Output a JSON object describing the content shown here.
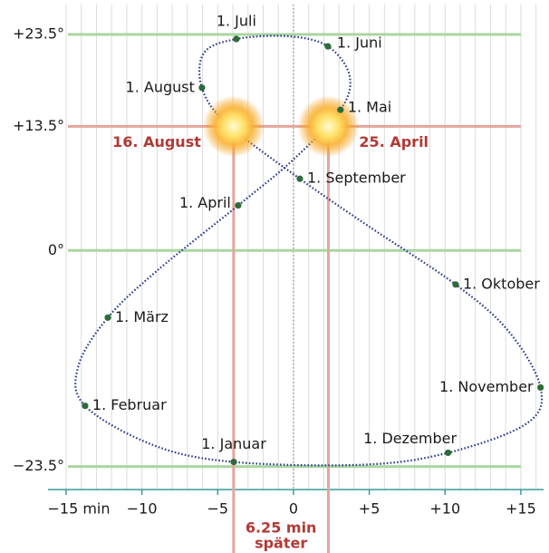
{
  "chart_data": {
    "type": "line",
    "xlim": [
      -15,
      16.5
    ],
    "ylim": [
      -26,
      26.75
    ],
    "xticks": [
      {
        "value": -15,
        "label": "−15 min"
      },
      {
        "value": -10,
        "label": "−10"
      },
      {
        "value": -5,
        "label": "−5"
      },
      0,
      {
        "value": 5,
        "label": "+5"
      },
      {
        "value": 10,
        "label": "+10"
      },
      {
        "value": 15,
        "label": "+15"
      }
    ],
    "yticks": [
      {
        "value": 23.5,
        "label": "+23.5°"
      },
      {
        "value": 13.5,
        "label": "+13.5°"
      },
      {
        "value": 0,
        "label": "0°"
      },
      {
        "value": -23.5,
        "label": "−23.5°"
      }
    ],
    "ytick_line_colors": [
      "#a9d6a0",
      "#e3a59c",
      "#a9d6a0",
      "#a9d6a0"
    ],
    "minor_xticks": [
      -15,
      -14,
      -13,
      -12,
      -11,
      -10,
      -9,
      -8,
      -7,
      -6,
      -5,
      -4,
      -3,
      -2,
      -1,
      0,
      1,
      2,
      3,
      4,
      5,
      6,
      7,
      8,
      9,
      10,
      11,
      12,
      13,
      14,
      15,
      16
    ],
    "grid": true,
    "axis_color": "#3a9a9a",
    "curve": {
      "color": "#2b3a8c",
      "x": [
        -3.94,
        -9.2,
        -13.75,
        -14.2,
        -12.25,
        -9.0,
        -3.65,
        0.0,
        3.1,
        3.7,
        2.27,
        -0.3,
        -3.77,
        -5.9,
        -6.04,
        -4.4,
        0.42,
        4.9,
        10.7,
        14.2,
        16.3,
        15.4,
        10.2,
        4.6,
        -3.94
      ],
      "y": [
        -23.0,
        -21.2,
        -16.9,
        -12.6,
        -7.3,
        -2.2,
        4.9,
        9.9,
        15.3,
        19.0,
        22.2,
        23.3,
        23.0,
        21.5,
        17.7,
        13.8,
        7.8,
        2.7,
        -3.7,
        -8.8,
        -14.9,
        -18.8,
        -22.0,
        -23.3,
        -23.0
      ]
    },
    "points": {
      "color": "#2e6b3a",
      "labels": [
        "1. Januar",
        "1. Februar",
        "1. März",
        "1. April",
        "1. Mai",
        "1. Juni",
        "1. Juli",
        "1. August",
        "1. September",
        "1. Oktober",
        "1. November",
        "1. Dezember"
      ],
      "x": [
        -3.94,
        -13.75,
        -12.25,
        -3.65,
        3.1,
        2.27,
        -3.77,
        -6.04,
        0.42,
        10.7,
        16.3,
        10.2
      ],
      "y": [
        -23.0,
        -16.9,
        -7.3,
        4.9,
        15.3,
        22.2,
        23.0,
        17.7,
        7.8,
        -3.7,
        -14.9,
        -22.0
      ]
    },
    "highlights": [
      {
        "label": "16. August",
        "x": -3.95,
        "y": 13.5
      },
      {
        "label": "25. April",
        "x": 2.3,
        "y": 13.5
      }
    ],
    "difference_label": [
      "6.25 min",
      "später"
    ]
  }
}
